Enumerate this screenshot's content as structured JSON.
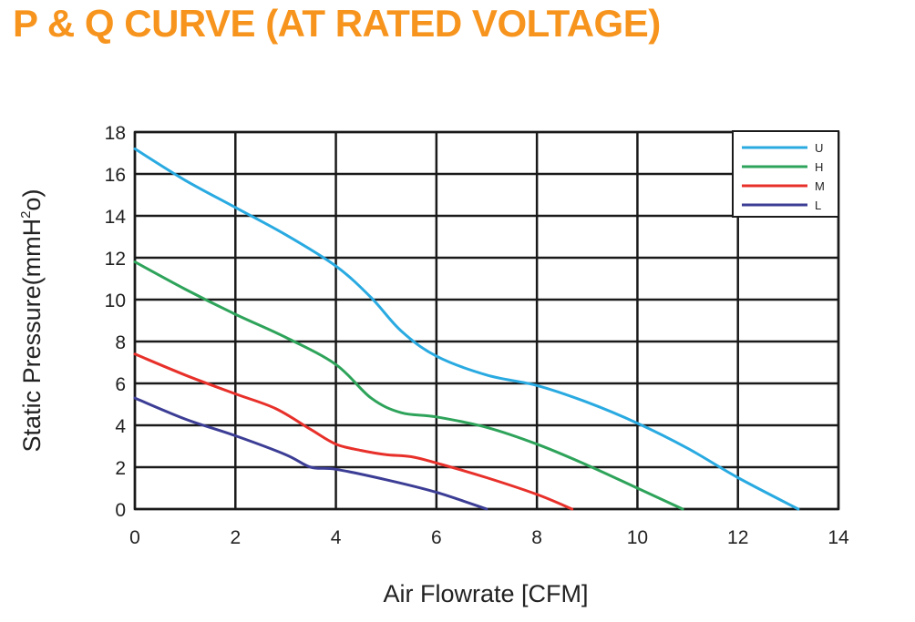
{
  "title": "P & Q CURVE (AT RATED VOLTAGE)",
  "colors": {
    "title": "#f7941d"
  },
  "chart_data": {
    "type": "line",
    "xlabel": "Air  Flowrate   [CFM]",
    "ylabel_main": "Static Pressure(mmH",
    "ylabel_sup": "2",
    "ylabel_end": "o)",
    "xlim": [
      0,
      14
    ],
    "ylim": [
      0,
      18
    ],
    "xticks": [
      0,
      2,
      4,
      6,
      8,
      10,
      12,
      14
    ],
    "yticks": [
      0,
      2,
      4,
      6,
      8,
      10,
      12,
      14,
      16,
      18
    ],
    "grid": true,
    "legend_position": "top-right",
    "series": [
      {
        "name": "U",
        "color": "#29aae1",
        "points": [
          [
            0,
            17.2
          ],
          [
            1,
            15.7
          ],
          [
            2,
            14.4
          ],
          [
            3,
            13.1
          ],
          [
            4,
            11.6
          ],
          [
            4.7,
            10.1
          ],
          [
            5.3,
            8.5
          ],
          [
            6,
            7.3
          ],
          [
            7,
            6.4
          ],
          [
            8,
            5.9
          ],
          [
            9,
            5.1
          ],
          [
            10,
            4.1
          ],
          [
            11,
            2.9
          ],
          [
            12,
            1.5
          ],
          [
            13.2,
            0
          ]
        ]
      },
      {
        "name": "H",
        "color": "#2ea35a",
        "points": [
          [
            0,
            11.8
          ],
          [
            1,
            10.5
          ],
          [
            2,
            9.3
          ],
          [
            3,
            8.2
          ],
          [
            4,
            6.9
          ],
          [
            4.7,
            5.3
          ],
          [
            5.3,
            4.6
          ],
          [
            6,
            4.4
          ],
          [
            7,
            3.9
          ],
          [
            8,
            3.1
          ],
          [
            9,
            2.1
          ],
          [
            10,
            1.0
          ],
          [
            10.9,
            0
          ]
        ]
      },
      {
        "name": "M",
        "color": "#e8302a",
        "points": [
          [
            0,
            7.4
          ],
          [
            1,
            6.4
          ],
          [
            2,
            5.5
          ],
          [
            2.8,
            4.8
          ],
          [
            3.5,
            3.8
          ],
          [
            4,
            3.1
          ],
          [
            4.5,
            2.8
          ],
          [
            5,
            2.6
          ],
          [
            5.5,
            2.5
          ],
          [
            6,
            2.2
          ],
          [
            7,
            1.5
          ],
          [
            8,
            0.7
          ],
          [
            8.7,
            0
          ]
        ]
      },
      {
        "name": "L",
        "color": "#3c3d95",
        "points": [
          [
            0,
            5.3
          ],
          [
            1,
            4.3
          ],
          [
            2,
            3.5
          ],
          [
            3,
            2.6
          ],
          [
            3.5,
            2.0
          ],
          [
            4,
            1.9
          ],
          [
            5,
            1.4
          ],
          [
            6,
            0.8
          ],
          [
            7,
            0
          ]
        ]
      }
    ]
  }
}
